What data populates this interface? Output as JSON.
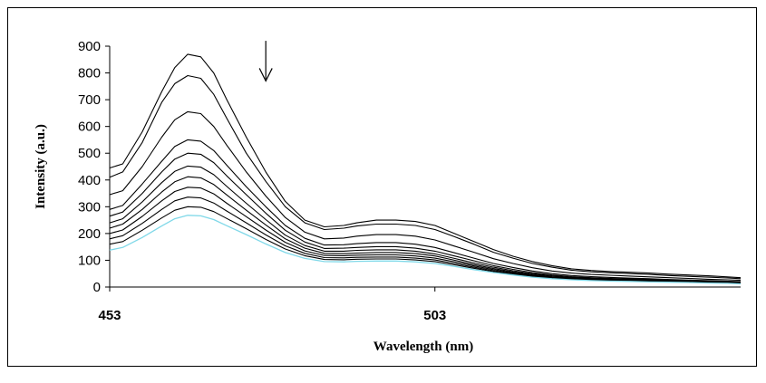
{
  "chart_data": {
    "type": "line",
    "title": "",
    "xlabel": "Wavelength (nm)",
    "ylabel": "Intensity (a.u.)",
    "xlim": [
      453,
      550
    ],
    "ylim": [
      0,
      900
    ],
    "yticks": [
      0,
      100,
      200,
      300,
      400,
      500,
      600,
      700,
      800,
      900
    ],
    "xtick_labels": [
      {
        "value": 453,
        "label": "453"
      },
      {
        "value": 503,
        "label": "503"
      }
    ],
    "grid": false,
    "legend": "none",
    "annotation": {
      "type": "arrow-down",
      "x": 477,
      "y_from": 920,
      "y_to": 770
    },
    "x": [
      453,
      455,
      458,
      461,
      463,
      465,
      467,
      469,
      471,
      474,
      477,
      480,
      483,
      486,
      489,
      491,
      494,
      497,
      500,
      503,
      506,
      509,
      512,
      515,
      518,
      521,
      524,
      527,
      530,
      533,
      536,
      539,
      542,
      545,
      548,
      550
    ],
    "peaks": [
      {
        "name": "peak1",
        "values": [
          445,
          460,
          580,
          730,
          820,
          870,
          860,
          800,
          700,
          560,
          430,
          320,
          250,
          225,
          230,
          240,
          250,
          250,
          245,
          230,
          200,
          170,
          140,
          115,
          95,
          80,
          68,
          62,
          58,
          55,
          52,
          48,
          45,
          42,
          38,
          35
        ]
      },
      {
        "name": "peak2",
        "values": [
          410,
          430,
          540,
          690,
          760,
          790,
          780,
          720,
          630,
          500,
          395,
          300,
          240,
          215,
          220,
          228,
          235,
          235,
          230,
          215,
          188,
          160,
          130,
          108,
          88,
          74,
          63,
          57,
          53,
          50,
          47,
          43,
          40,
          37,
          34,
          31
        ]
      },
      {
        "name": "peak3",
        "values": [
          345,
          360,
          450,
          560,
          625,
          655,
          648,
          600,
          530,
          430,
          340,
          260,
          205,
          180,
          183,
          190,
          196,
          196,
          190,
          176,
          153,
          130,
          106,
          88,
          72,
          60,
          52,
          47,
          44,
          41,
          38,
          35,
          32,
          29,
          27,
          25
        ]
      },
      {
        "name": "peak4",
        "values": [
          290,
          305,
          385,
          470,
          525,
          550,
          545,
          510,
          455,
          375,
          300,
          230,
          182,
          157,
          158,
          162,
          166,
          166,
          160,
          148,
          128,
          108,
          88,
          73,
          60,
          50,
          43,
          39,
          36,
          33,
          31,
          28,
          26,
          24,
          22,
          20
        ]
      },
      {
        "name": "peak5",
        "values": [
          265,
          280,
          350,
          430,
          478,
          500,
          496,
          465,
          415,
          345,
          276,
          212,
          168,
          144,
          145,
          148,
          151,
          151,
          145,
          134,
          116,
          98,
          80,
          66,
          54,
          45,
          39,
          35,
          32,
          30,
          28,
          26,
          24,
          22,
          20,
          18
        ]
      },
      {
        "name": "peak6",
        "values": [
          240,
          255,
          318,
          390,
          432,
          452,
          448,
          420,
          376,
          313,
          252,
          194,
          155,
          134,
          134,
          137,
          139,
          139,
          134,
          124,
          107,
          90,
          74,
          61,
          50,
          42,
          36,
          33,
          30,
          28,
          26,
          24,
          22,
          20,
          19,
          17
        ]
      },
      {
        "name": "peak7",
        "values": [
          220,
          235,
          290,
          355,
          393,
          412,
          408,
          383,
          344,
          287,
          232,
          180,
          145,
          126,
          125,
          127,
          129,
          129,
          125,
          116,
          100,
          84,
          69,
          57,
          47,
          39,
          34,
          31,
          28,
          26,
          24,
          22,
          21,
          19,
          18,
          16
        ]
      },
      {
        "name": "peak8",
        "values": [
          200,
          213,
          264,
          322,
          357,
          373,
          370,
          348,
          313,
          263,
          213,
          167,
          135,
          118,
          117,
          119,
          120,
          120,
          116,
          108,
          94,
          79,
          65,
          54,
          44,
          37,
          32,
          29,
          27,
          25,
          23,
          21,
          20,
          18,
          17,
          15
        ]
      },
      {
        "name": "peak9",
        "values": [
          180,
          192,
          238,
          290,
          322,
          336,
          333,
          314,
          284,
          240,
          195,
          154,
          126,
          110,
          109,
          111,
          112,
          112,
          108,
          101,
          88,
          74,
          61,
          51,
          42,
          35,
          30,
          27,
          25,
          23,
          22,
          20,
          19,
          17,
          16,
          14
        ]
      },
      {
        "name": "peak10",
        "values": [
          160,
          170,
          212,
          258,
          287,
          300,
          298,
          282,
          256,
          218,
          178,
          142,
          117,
          103,
          102,
          104,
          105,
          105,
          101,
          95,
          83,
          70,
          58,
          48,
          40,
          33,
          29,
          26,
          24,
          22,
          21,
          19,
          18,
          16,
          15,
          13
        ]
      },
      {
        "name": "peak11",
        "values": [
          138,
          148,
          185,
          228,
          255,
          268,
          266,
          252,
          229,
          196,
          161,
          129,
          107,
          95,
          94,
          96,
          97,
          97,
          94,
          88,
          77,
          65,
          54,
          45,
          37,
          31,
          27,
          24,
          22,
          21,
          19,
          18,
          17,
          15,
          14,
          12
        ]
      }
    ],
    "colors": {
      "lines": "#000000",
      "last_line": "#7fd8e8",
      "axis": "#000000"
    }
  }
}
